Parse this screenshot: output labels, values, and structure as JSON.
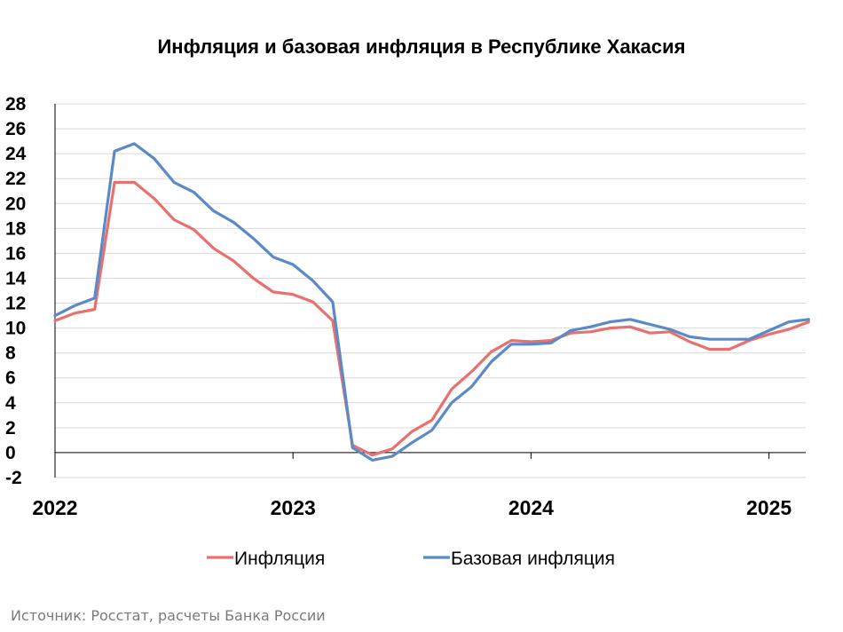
{
  "chart_data": {
    "type": "line",
    "title": "Инфляция и базовая инфляция в Республике Хакасия",
    "xlabel": "",
    "ylabel": "",
    "ylim": [
      -2,
      28
    ],
    "y_ticks": [
      "-2",
      "0",
      "2",
      "4",
      "6",
      "8",
      "10",
      "12",
      "14",
      "16",
      "18",
      "20",
      "22",
      "24",
      "26",
      "28"
    ],
    "x_ticks": [
      {
        "label": "2022",
        "month_index": 0
      },
      {
        "label": "2023",
        "month_index": 12
      },
      {
        "label": "2024",
        "month_index": 24
      },
      {
        "label": "2025",
        "month_index": 36
      }
    ],
    "grid": true,
    "legend_position": "bottom-center",
    "series": [
      {
        "name": "Инфляция",
        "color": "#e8716f",
        "values": [
          10.6,
          11.2,
          11.5,
          21.7,
          21.7,
          20.4,
          18.7,
          17.9,
          16.4,
          15.4,
          14.0,
          12.9,
          12.7,
          12.1,
          10.6,
          0.6,
          -0.2,
          0.3,
          1.7,
          2.6,
          5.1,
          6.5,
          8.1,
          9.0,
          8.9,
          9.0,
          9.6,
          9.7,
          10.0,
          10.1,
          9.6,
          9.7,
          8.9,
          8.3,
          8.3,
          9.0,
          9.5,
          9.9,
          10.5
        ],
        "x_start_month_index": 0
      },
      {
        "name": "Базовая инфляция",
        "color": "#5b8ac6",
        "values": [
          11.0,
          11.8,
          12.4,
          24.2,
          24.8,
          23.6,
          21.7,
          20.9,
          19.4,
          18.5,
          17.2,
          15.7,
          15.1,
          13.8,
          12.1,
          0.4,
          -0.6,
          -0.3,
          0.8,
          1.8,
          4.0,
          5.3,
          7.3,
          8.7,
          8.7,
          8.8,
          9.8,
          10.1,
          10.5,
          10.7,
          10.3,
          9.9,
          9.3,
          9.1,
          9.1,
          9.1,
          9.8,
          10.5,
          10.7
        ],
        "x_start_month_index": 0
      }
    ]
  },
  "source_note": "Источник: Росстат, расчеты Банка России"
}
